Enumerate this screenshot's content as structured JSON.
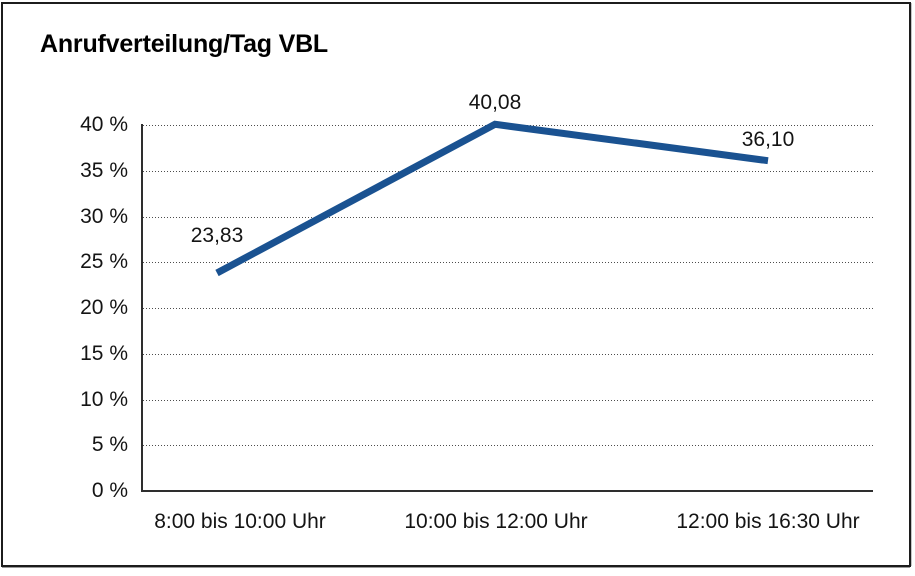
{
  "chart_data": {
    "type": "line",
    "title": "Anrufverteilung/Tag VBL",
    "categories": [
      "8:00 bis 10:00 Uhr",
      "10:00 bis 12:00 Uhr",
      "12:00 bis 16:30 Uhr"
    ],
    "values": [
      23.83,
      40.08,
      36.1
    ],
    "data_labels": [
      "23,83",
      "40,08",
      "36,10"
    ],
    "xlabel": "",
    "ylabel": "",
    "ylim": [
      0,
      40
    ],
    "ytick_step": 5,
    "ytick_labels": [
      "0 %",
      "5 %",
      "10 %",
      "15 %",
      "20 %",
      "25 %",
      "30 %",
      "35 %",
      "40 %"
    ],
    "grid": "horizontal-dotted",
    "legend": "none",
    "line_color": "#1A5291",
    "unit_suffix": "%"
  }
}
